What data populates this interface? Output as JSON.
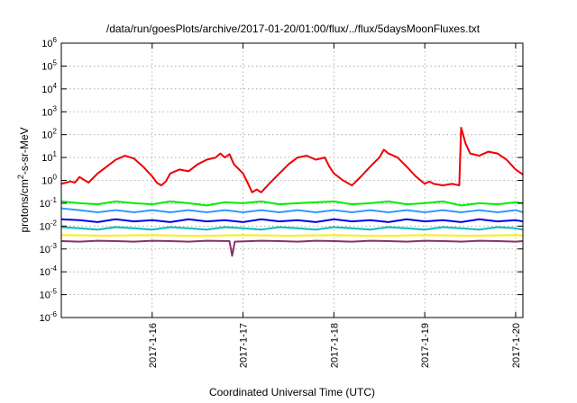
{
  "chart_data": {
    "type": "line",
    "title": "/data/run/goesPlots/archive/2017-01-20/01:00/flux/../flux/5daysMoonFluxes.txt",
    "xlabel": "Coordinated Universal Time (UTC)",
    "ylabel_parts": {
      "pre": "protons/cm",
      "sup": "2",
      "post": "-s-sr-MeV"
    },
    "yscale": "log",
    "ylim_exp": [
      -6,
      6
    ],
    "xlim_days": [
      15.0,
      20.08
    ],
    "grid": true,
    "x_tick_labels": [
      {
        "day": 16,
        "label": "2017-1-16"
      },
      {
        "day": 17,
        "label": "2017-1-17"
      },
      {
        "day": 18,
        "label": "2017-1-18"
      },
      {
        "day": 19,
        "label": "2017-1-19"
      },
      {
        "day": 20,
        "label": "2017-1-20"
      }
    ],
    "y_tick_labels": [
      {
        "exp": 6,
        "base": "10",
        "sup": "6"
      },
      {
        "exp": 5,
        "base": "10",
        "sup": "5"
      },
      {
        "exp": 4,
        "base": "10",
        "sup": "4"
      },
      {
        "exp": 3,
        "base": "10",
        "sup": "3"
      },
      {
        "exp": 2,
        "base": "10",
        "sup": "2"
      },
      {
        "exp": 1,
        "base": "10",
        "sup": "1"
      },
      {
        "exp": 0,
        "base": "10",
        "sup": "0"
      },
      {
        "exp": -1,
        "base": "10",
        "sup": "-1"
      },
      {
        "exp": -2,
        "base": "10",
        "sup": "-2"
      },
      {
        "exp": -3,
        "base": "10",
        "sup": "-3"
      },
      {
        "exp": -4,
        "base": "10",
        "sup": "-4"
      },
      {
        "exp": -5,
        "base": "10",
        "sup": "-5"
      },
      {
        "exp": -6,
        "base": "10",
        "sup": "-6"
      }
    ],
    "series": [
      {
        "color": "#ee0000",
        "stroke_width": 2,
        "points": [
          [
            15.0,
            0.7
          ],
          [
            15.1,
            0.9
          ],
          [
            15.15,
            0.8
          ],
          [
            15.2,
            1.4
          ],
          [
            15.3,
            0.8
          ],
          [
            15.4,
            2.0
          ],
          [
            15.5,
            4.0
          ],
          [
            15.6,
            8.0
          ],
          [
            15.7,
            12.0
          ],
          [
            15.8,
            9.0
          ],
          [
            15.9,
            4.0
          ],
          [
            16.0,
            1.5
          ],
          [
            16.05,
            0.8
          ],
          [
            16.1,
            0.6
          ],
          [
            16.15,
            0.9
          ],
          [
            16.2,
            2.0
          ],
          [
            16.3,
            3.0
          ],
          [
            16.4,
            2.5
          ],
          [
            16.5,
            5.0
          ],
          [
            16.6,
            8.0
          ],
          [
            16.7,
            10.0
          ],
          [
            16.75,
            15.0
          ],
          [
            16.8,
            10.0
          ],
          [
            16.85,
            14.0
          ],
          [
            16.9,
            5.0
          ],
          [
            17.0,
            2.0
          ],
          [
            17.05,
            0.8
          ],
          [
            17.1,
            0.3
          ],
          [
            17.15,
            0.4
          ],
          [
            17.2,
            0.3
          ],
          [
            17.3,
            0.8
          ],
          [
            17.4,
            2.0
          ],
          [
            17.5,
            5.0
          ],
          [
            17.6,
            10.0
          ],
          [
            17.7,
            12.0
          ],
          [
            17.8,
            8.0
          ],
          [
            17.9,
            10.0
          ],
          [
            17.95,
            4.0
          ],
          [
            18.0,
            2.0
          ],
          [
            18.1,
            1.0
          ],
          [
            18.2,
            0.6
          ],
          [
            18.3,
            1.5
          ],
          [
            18.4,
            4.0
          ],
          [
            18.5,
            10.0
          ],
          [
            18.55,
            22.0
          ],
          [
            18.6,
            15.0
          ],
          [
            18.7,
            10.0
          ],
          [
            18.8,
            4.0
          ],
          [
            18.9,
            1.5
          ],
          [
            19.0,
            0.7
          ],
          [
            19.05,
            0.9
          ],
          [
            19.1,
            0.7
          ],
          [
            19.2,
            0.6
          ],
          [
            19.3,
            0.7
          ],
          [
            19.38,
            0.6
          ],
          [
            19.4,
            200.0
          ],
          [
            19.45,
            40.0
          ],
          [
            19.5,
            15.0
          ],
          [
            19.6,
            12.0
          ],
          [
            19.7,
            18.0
          ],
          [
            19.8,
            15.0
          ],
          [
            19.9,
            8.0
          ],
          [
            20.0,
            3.0
          ],
          [
            20.08,
            1.8
          ]
        ]
      },
      {
        "color": "#00ee00",
        "stroke_width": 2,
        "points": [
          [
            15.0,
            0.12
          ],
          [
            15.2,
            0.1
          ],
          [
            15.4,
            0.09
          ],
          [
            15.6,
            0.12
          ],
          [
            15.8,
            0.1
          ],
          [
            16.0,
            0.09
          ],
          [
            16.2,
            0.12
          ],
          [
            16.4,
            0.1
          ],
          [
            16.6,
            0.08
          ],
          [
            16.8,
            0.11
          ],
          [
            17.0,
            0.1
          ],
          [
            17.2,
            0.12
          ],
          [
            17.4,
            0.09
          ],
          [
            17.6,
            0.1
          ],
          [
            17.8,
            0.11
          ],
          [
            18.0,
            0.12
          ],
          [
            18.2,
            0.09
          ],
          [
            18.4,
            0.1
          ],
          [
            18.6,
            0.12
          ],
          [
            18.8,
            0.09
          ],
          [
            19.0,
            0.1
          ],
          [
            19.2,
            0.12
          ],
          [
            19.4,
            0.08
          ],
          [
            19.6,
            0.1
          ],
          [
            19.8,
            0.09
          ],
          [
            20.0,
            0.11
          ],
          [
            20.08,
            0.1
          ]
        ]
      },
      {
        "color": "#3399ff",
        "stroke_width": 2,
        "points": [
          [
            15.0,
            0.06
          ],
          [
            15.2,
            0.05
          ],
          [
            15.4,
            0.04
          ],
          [
            15.6,
            0.05
          ],
          [
            15.8,
            0.04
          ],
          [
            16.0,
            0.05
          ],
          [
            16.2,
            0.04
          ],
          [
            16.4,
            0.05
          ],
          [
            16.6,
            0.04
          ],
          [
            16.8,
            0.05
          ],
          [
            17.0,
            0.04
          ],
          [
            17.2,
            0.05
          ],
          [
            17.4,
            0.04
          ],
          [
            17.6,
            0.05
          ],
          [
            17.8,
            0.04
          ],
          [
            18.0,
            0.05
          ],
          [
            18.2,
            0.04
          ],
          [
            18.4,
            0.05
          ],
          [
            18.6,
            0.04
          ],
          [
            18.8,
            0.05
          ],
          [
            19.0,
            0.04
          ],
          [
            19.2,
            0.05
          ],
          [
            19.4,
            0.04
          ],
          [
            19.6,
            0.05
          ],
          [
            19.8,
            0.04
          ],
          [
            20.0,
            0.05
          ],
          [
            20.08,
            0.04
          ]
        ]
      },
      {
        "color": "#0000ee",
        "stroke_width": 2,
        "points": [
          [
            15.0,
            0.02
          ],
          [
            15.2,
            0.018
          ],
          [
            15.4,
            0.015
          ],
          [
            15.6,
            0.02
          ],
          [
            15.8,
            0.016
          ],
          [
            16.0,
            0.018
          ],
          [
            16.2,
            0.015
          ],
          [
            16.4,
            0.02
          ],
          [
            16.6,
            0.016
          ],
          [
            16.8,
            0.018
          ],
          [
            17.0,
            0.015
          ],
          [
            17.2,
            0.02
          ],
          [
            17.4,
            0.016
          ],
          [
            17.6,
            0.018
          ],
          [
            17.8,
            0.015
          ],
          [
            18.0,
            0.02
          ],
          [
            18.2,
            0.016
          ],
          [
            18.4,
            0.018
          ],
          [
            18.6,
            0.015
          ],
          [
            18.8,
            0.02
          ],
          [
            19.0,
            0.016
          ],
          [
            19.2,
            0.018
          ],
          [
            19.4,
            0.015
          ],
          [
            19.6,
            0.02
          ],
          [
            19.8,
            0.016
          ],
          [
            20.0,
            0.018
          ],
          [
            20.08,
            0.016
          ]
        ]
      },
      {
        "color": "#00bbbb",
        "stroke_width": 2,
        "points": [
          [
            15.0,
            0.009
          ],
          [
            15.2,
            0.008
          ],
          [
            15.4,
            0.007
          ],
          [
            15.6,
            0.009
          ],
          [
            15.8,
            0.008
          ],
          [
            16.0,
            0.007
          ],
          [
            16.2,
            0.009
          ],
          [
            16.4,
            0.008
          ],
          [
            16.6,
            0.007
          ],
          [
            16.8,
            0.009
          ],
          [
            17.0,
            0.008
          ],
          [
            17.2,
            0.007
          ],
          [
            17.4,
            0.009
          ],
          [
            17.6,
            0.008
          ],
          [
            17.8,
            0.007
          ],
          [
            18.0,
            0.009
          ],
          [
            18.2,
            0.008
          ],
          [
            18.4,
            0.007
          ],
          [
            18.6,
            0.009
          ],
          [
            18.8,
            0.008
          ],
          [
            19.0,
            0.007
          ],
          [
            19.2,
            0.009
          ],
          [
            19.4,
            0.008
          ],
          [
            19.6,
            0.007
          ],
          [
            19.8,
            0.009
          ],
          [
            20.0,
            0.008
          ],
          [
            20.08,
            0.007
          ]
        ]
      },
      {
        "color": "#ffee00",
        "stroke_width": 2,
        "points": [
          [
            15.0,
            0.004
          ],
          [
            15.5,
            0.0038
          ],
          [
            16.0,
            0.004
          ],
          [
            16.5,
            0.0037
          ],
          [
            17.0,
            0.004
          ],
          [
            17.5,
            0.0038
          ],
          [
            18.0,
            0.004
          ],
          [
            18.5,
            0.0037
          ],
          [
            19.0,
            0.004
          ],
          [
            19.5,
            0.0038
          ],
          [
            20.0,
            0.004
          ],
          [
            20.08,
            0.0039
          ]
        ]
      },
      {
        "color": "#883366",
        "stroke_width": 2,
        "points": [
          [
            15.0,
            0.0022
          ],
          [
            15.2,
            0.0021
          ],
          [
            15.4,
            0.0023
          ],
          [
            15.6,
            0.0022
          ],
          [
            15.8,
            0.0021
          ],
          [
            16.0,
            0.0023
          ],
          [
            16.2,
            0.0022
          ],
          [
            16.4,
            0.0021
          ],
          [
            16.6,
            0.0023
          ],
          [
            16.85,
            0.0022
          ],
          [
            16.88,
            0.0005
          ],
          [
            16.91,
            0.0021
          ],
          [
            17.2,
            0.0023
          ],
          [
            17.4,
            0.0022
          ],
          [
            17.6,
            0.0021
          ],
          [
            17.8,
            0.0023
          ],
          [
            18.0,
            0.0022
          ],
          [
            18.2,
            0.0021
          ],
          [
            18.4,
            0.0023
          ],
          [
            18.6,
            0.0022
          ],
          [
            18.8,
            0.0021
          ],
          [
            19.0,
            0.0023
          ],
          [
            19.2,
            0.0022
          ],
          [
            19.4,
            0.0021
          ],
          [
            19.6,
            0.0023
          ],
          [
            19.8,
            0.0022
          ],
          [
            20.0,
            0.0021
          ],
          [
            20.08,
            0.0022
          ]
        ]
      }
    ]
  }
}
